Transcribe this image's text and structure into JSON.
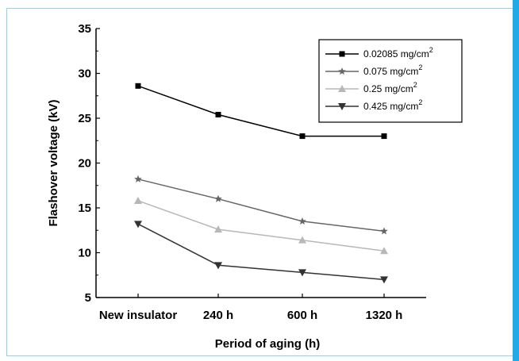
{
  "chart_data": {
    "type": "line",
    "title": "",
    "xlabel": "Period of aging (h)",
    "ylabel": "Flashover voltage (kV)",
    "categories": [
      "New insulator",
      "240 h",
      "600 h",
      "1320 h"
    ],
    "ylim": [
      5,
      35
    ],
    "yticks": [
      5,
      10,
      15,
      20,
      25,
      30,
      35
    ],
    "grid": false,
    "legend_position": "top-right",
    "series": [
      {
        "name": "0.02085 mg/cm",
        "sup": "2",
        "marker": "square",
        "color": "#000000",
        "values": [
          28.6,
          25.4,
          23.0,
          23.0
        ]
      },
      {
        "name": "0.075 mg/cm",
        "sup": "2",
        "marker": "star",
        "color": "#666666",
        "values": [
          18.2,
          16.0,
          13.5,
          12.4
        ]
      },
      {
        "name": "0.25 mg/cm",
        "sup": "2",
        "marker": "triangle-up",
        "color": "#b8b8b8",
        "values": [
          15.8,
          12.6,
          11.4,
          10.2
        ]
      },
      {
        "name": "0.425 mg/cm",
        "sup": "2",
        "marker": "triangle-down",
        "color": "#333333",
        "values": [
          13.2,
          8.6,
          7.8,
          7.0
        ]
      }
    ]
  }
}
